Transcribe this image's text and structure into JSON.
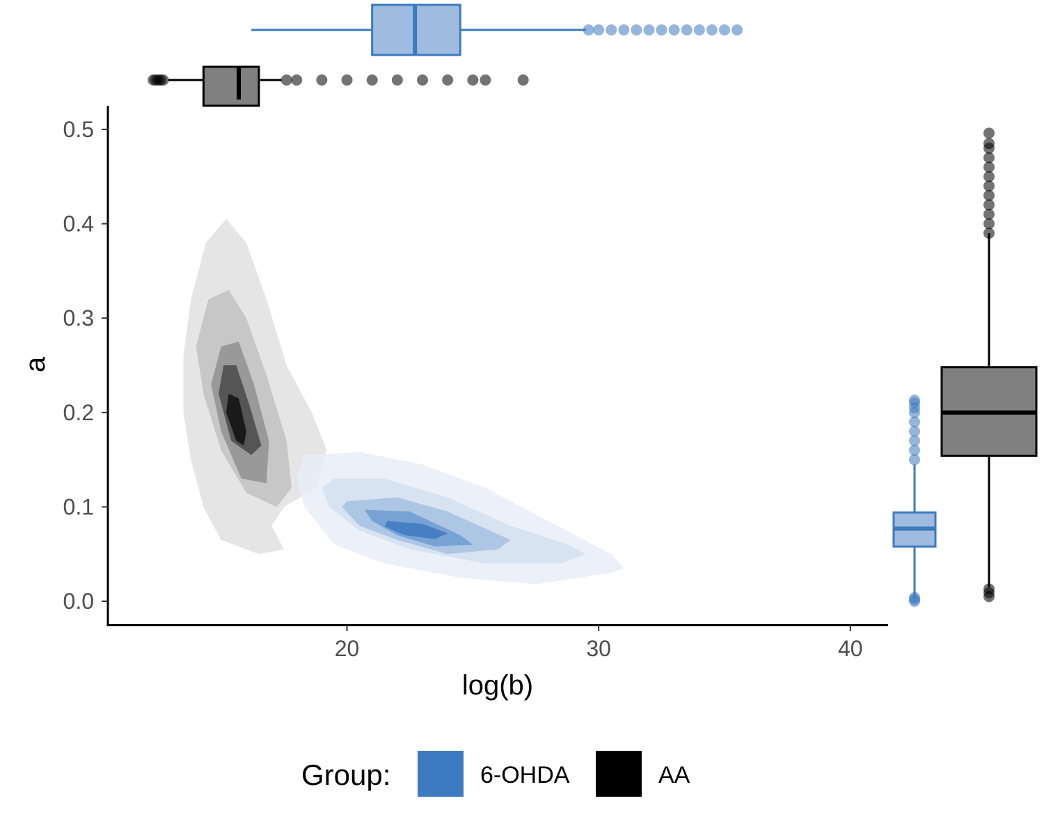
{
  "chart_data": {
    "type": "contour density with marginal boxplots",
    "xlabel": "log(b)",
    "ylabel": "a",
    "xlim": [
      10.5,
      41.5
    ],
    "ylim": [
      -0.025,
      0.525
    ],
    "x_ticks": [
      20,
      30,
      40
    ],
    "y_ticks": [
      0.0,
      0.1,
      0.2,
      0.3,
      0.4,
      0.5
    ],
    "y_tick_labels": [
      "0.0",
      "0.1",
      "0.2",
      "0.3",
      "0.4",
      "0.5"
    ],
    "grid": false,
    "legend": {
      "title": "Group:",
      "position": "bottom",
      "entries": [
        {
          "label": "6-OHDA",
          "color": "#3d7abf"
        },
        {
          "label": "AA",
          "color": "#000000"
        }
      ]
    },
    "series": [
      {
        "name": "6-OHDA",
        "color": "#3d7abf",
        "density_center": {
          "x": 22.3,
          "y": 0.077
        },
        "density_levels": [
          {
            "fill": "#e9eff8",
            "points": [
              [
                18.3,
                0.155
              ],
              [
                20.5,
                0.158
              ],
              [
                23.0,
                0.145
              ],
              [
                25.5,
                0.12
              ],
              [
                28.0,
                0.085
              ],
              [
                30.5,
                0.05
              ],
              [
                31.0,
                0.035
              ],
              [
                30.5,
                0.03
              ],
              [
                27.5,
                0.018
              ],
              [
                24.5,
                0.025
              ],
              [
                21.5,
                0.04
              ],
              [
                19.5,
                0.06
              ],
              [
                18.3,
                0.1
              ],
              [
                18.0,
                0.13
              ]
            ]
          },
          {
            "fill": "#d3e0f0",
            "points": [
              [
                19.5,
                0.13
              ],
              [
                21.5,
                0.13
              ],
              [
                24.0,
                0.11
              ],
              [
                26.5,
                0.08
              ],
              [
                28.8,
                0.06
              ],
              [
                29.5,
                0.05
              ],
              [
                28.5,
                0.04
              ],
              [
                25.5,
                0.04
              ],
              [
                22.5,
                0.055
              ],
              [
                20.5,
                0.075
              ],
              [
                19.3,
                0.1
              ],
              [
                19.0,
                0.12
              ]
            ]
          },
          {
            "fill": "#a6c1e2",
            "points": [
              [
                20.0,
                0.106
              ],
              [
                22.0,
                0.11
              ],
              [
                24.0,
                0.095
              ],
              [
                26.5,
                0.065
              ],
              [
                26.0,
                0.055
              ],
              [
                24.0,
                0.05
              ],
              [
                22.0,
                0.065
              ],
              [
                20.5,
                0.08
              ],
              [
                19.8,
                0.1
              ]
            ]
          },
          {
            "fill": "#6d9bd1",
            "points": [
              [
                20.7,
                0.097
              ],
              [
                22.5,
                0.095
              ],
              [
                24.5,
                0.07
              ],
              [
                25.0,
                0.06
              ],
              [
                23.5,
                0.058
              ],
              [
                22.0,
                0.07
              ],
              [
                21.0,
                0.085
              ]
            ]
          },
          {
            "fill": "#3d7abf",
            "points": [
              [
                21.6,
                0.085
              ],
              [
                23.0,
                0.082
              ],
              [
                24.0,
                0.072
              ],
              [
                23.5,
                0.066
              ],
              [
                22.3,
                0.07
              ],
              [
                21.5,
                0.079
              ]
            ]
          }
        ],
        "boxplot_x": {
          "min": 16.2,
          "q1": 21.0,
          "median": 22.7,
          "q3": 24.5,
          "max": 29.5,
          "outliers": [
            29.6,
            30.0,
            30.5,
            31.0,
            31.5,
            32.0,
            32.5,
            33.0,
            33.5,
            34.0,
            34.5,
            35.0,
            35.5
          ]
        },
        "boxplot_y": {
          "min": 0.003,
          "q1": 0.058,
          "median": 0.077,
          "q3": 0.094,
          "max": 0.145,
          "outliers": [
            0.0,
            0.002,
            0.004,
            0.15,
            0.16,
            0.17,
            0.18,
            0.19,
            0.2,
            0.205,
            0.21,
            0.213
          ]
        }
      },
      {
        "name": "AA",
        "color": "#000000",
        "density_center": {
          "x": 15.8,
          "y": 0.2
        },
        "density_levels": [
          {
            "fill": "#e5e5e5",
            "points": [
              [
                14.4,
                0.38
              ],
              [
                15.2,
                0.405
              ],
              [
                16.0,
                0.38
              ],
              [
                16.8,
                0.32
              ],
              [
                17.6,
                0.25
              ],
              [
                18.6,
                0.2
              ],
              [
                19.2,
                0.16
              ],
              [
                18.8,
                0.12
              ],
              [
                17.5,
                0.1
              ],
              [
                17.0,
                0.08
              ],
              [
                17.5,
                0.055
              ],
              [
                16.5,
                0.05
              ],
              [
                15.0,
                0.065
              ],
              [
                14.3,
                0.1
              ],
              [
                13.8,
                0.15
              ],
              [
                13.5,
                0.2
              ],
              [
                13.5,
                0.26
              ],
              [
                13.8,
                0.32
              ]
            ]
          },
          {
            "fill": "#c7c7c7",
            "points": [
              [
                14.5,
                0.32
              ],
              [
                15.3,
                0.33
              ],
              [
                16.0,
                0.3
              ],
              [
                16.8,
                0.24
              ],
              [
                17.6,
                0.17
              ],
              [
                17.8,
                0.12
              ],
              [
                17.2,
                0.1
              ],
              [
                16.0,
                0.115
              ],
              [
                15.0,
                0.16
              ],
              [
                14.3,
                0.22
              ],
              [
                14.0,
                0.27
              ]
            ]
          },
          {
            "fill": "#999999",
            "points": [
              [
                15.0,
                0.27
              ],
              [
                15.7,
                0.275
              ],
              [
                16.3,
                0.23
              ],
              [
                16.9,
                0.17
              ],
              [
                16.8,
                0.125
              ],
              [
                15.8,
                0.13
              ],
              [
                15.0,
                0.18
              ],
              [
                14.6,
                0.23
              ]
            ]
          },
          {
            "fill": "#555555",
            "points": [
              [
                15.1,
                0.25
              ],
              [
                15.6,
                0.25
              ],
              [
                16.1,
                0.21
              ],
              [
                16.6,
                0.165
              ],
              [
                16.2,
                0.155
              ],
              [
                15.4,
                0.17
              ],
              [
                14.9,
                0.22
              ]
            ]
          },
          {
            "fill": "#1a1a1a",
            "points": [
              [
                15.3,
                0.22
              ],
              [
                15.7,
                0.215
              ],
              [
                16.0,
                0.18
              ],
              [
                15.9,
                0.165
              ],
              [
                15.6,
                0.17
              ],
              [
                15.2,
                0.2
              ]
            ]
          }
        ],
        "boxplot_x": {
          "min": 12.9,
          "q1": 14.3,
          "median": 15.7,
          "q3": 16.5,
          "max": 17.4,
          "outliers": [
            12.3,
            12.4,
            12.5,
            12.6,
            12.7,
            17.6,
            18.0,
            19.0,
            20.0,
            21.0,
            22.0,
            23.0,
            24.0,
            25.0,
            25.5,
            27.0
          ]
        },
        "boxplot_y": {
          "min": 0.015,
          "q1": 0.154,
          "median": 0.2,
          "q3": 0.248,
          "max": 0.39,
          "outliers": [
            0.005,
            0.009,
            0.013,
            0.39,
            0.4,
            0.41,
            0.42,
            0.43,
            0.44,
            0.45,
            0.46,
            0.47,
            0.48,
            0.485,
            0.496
          ]
        }
      }
    ]
  }
}
